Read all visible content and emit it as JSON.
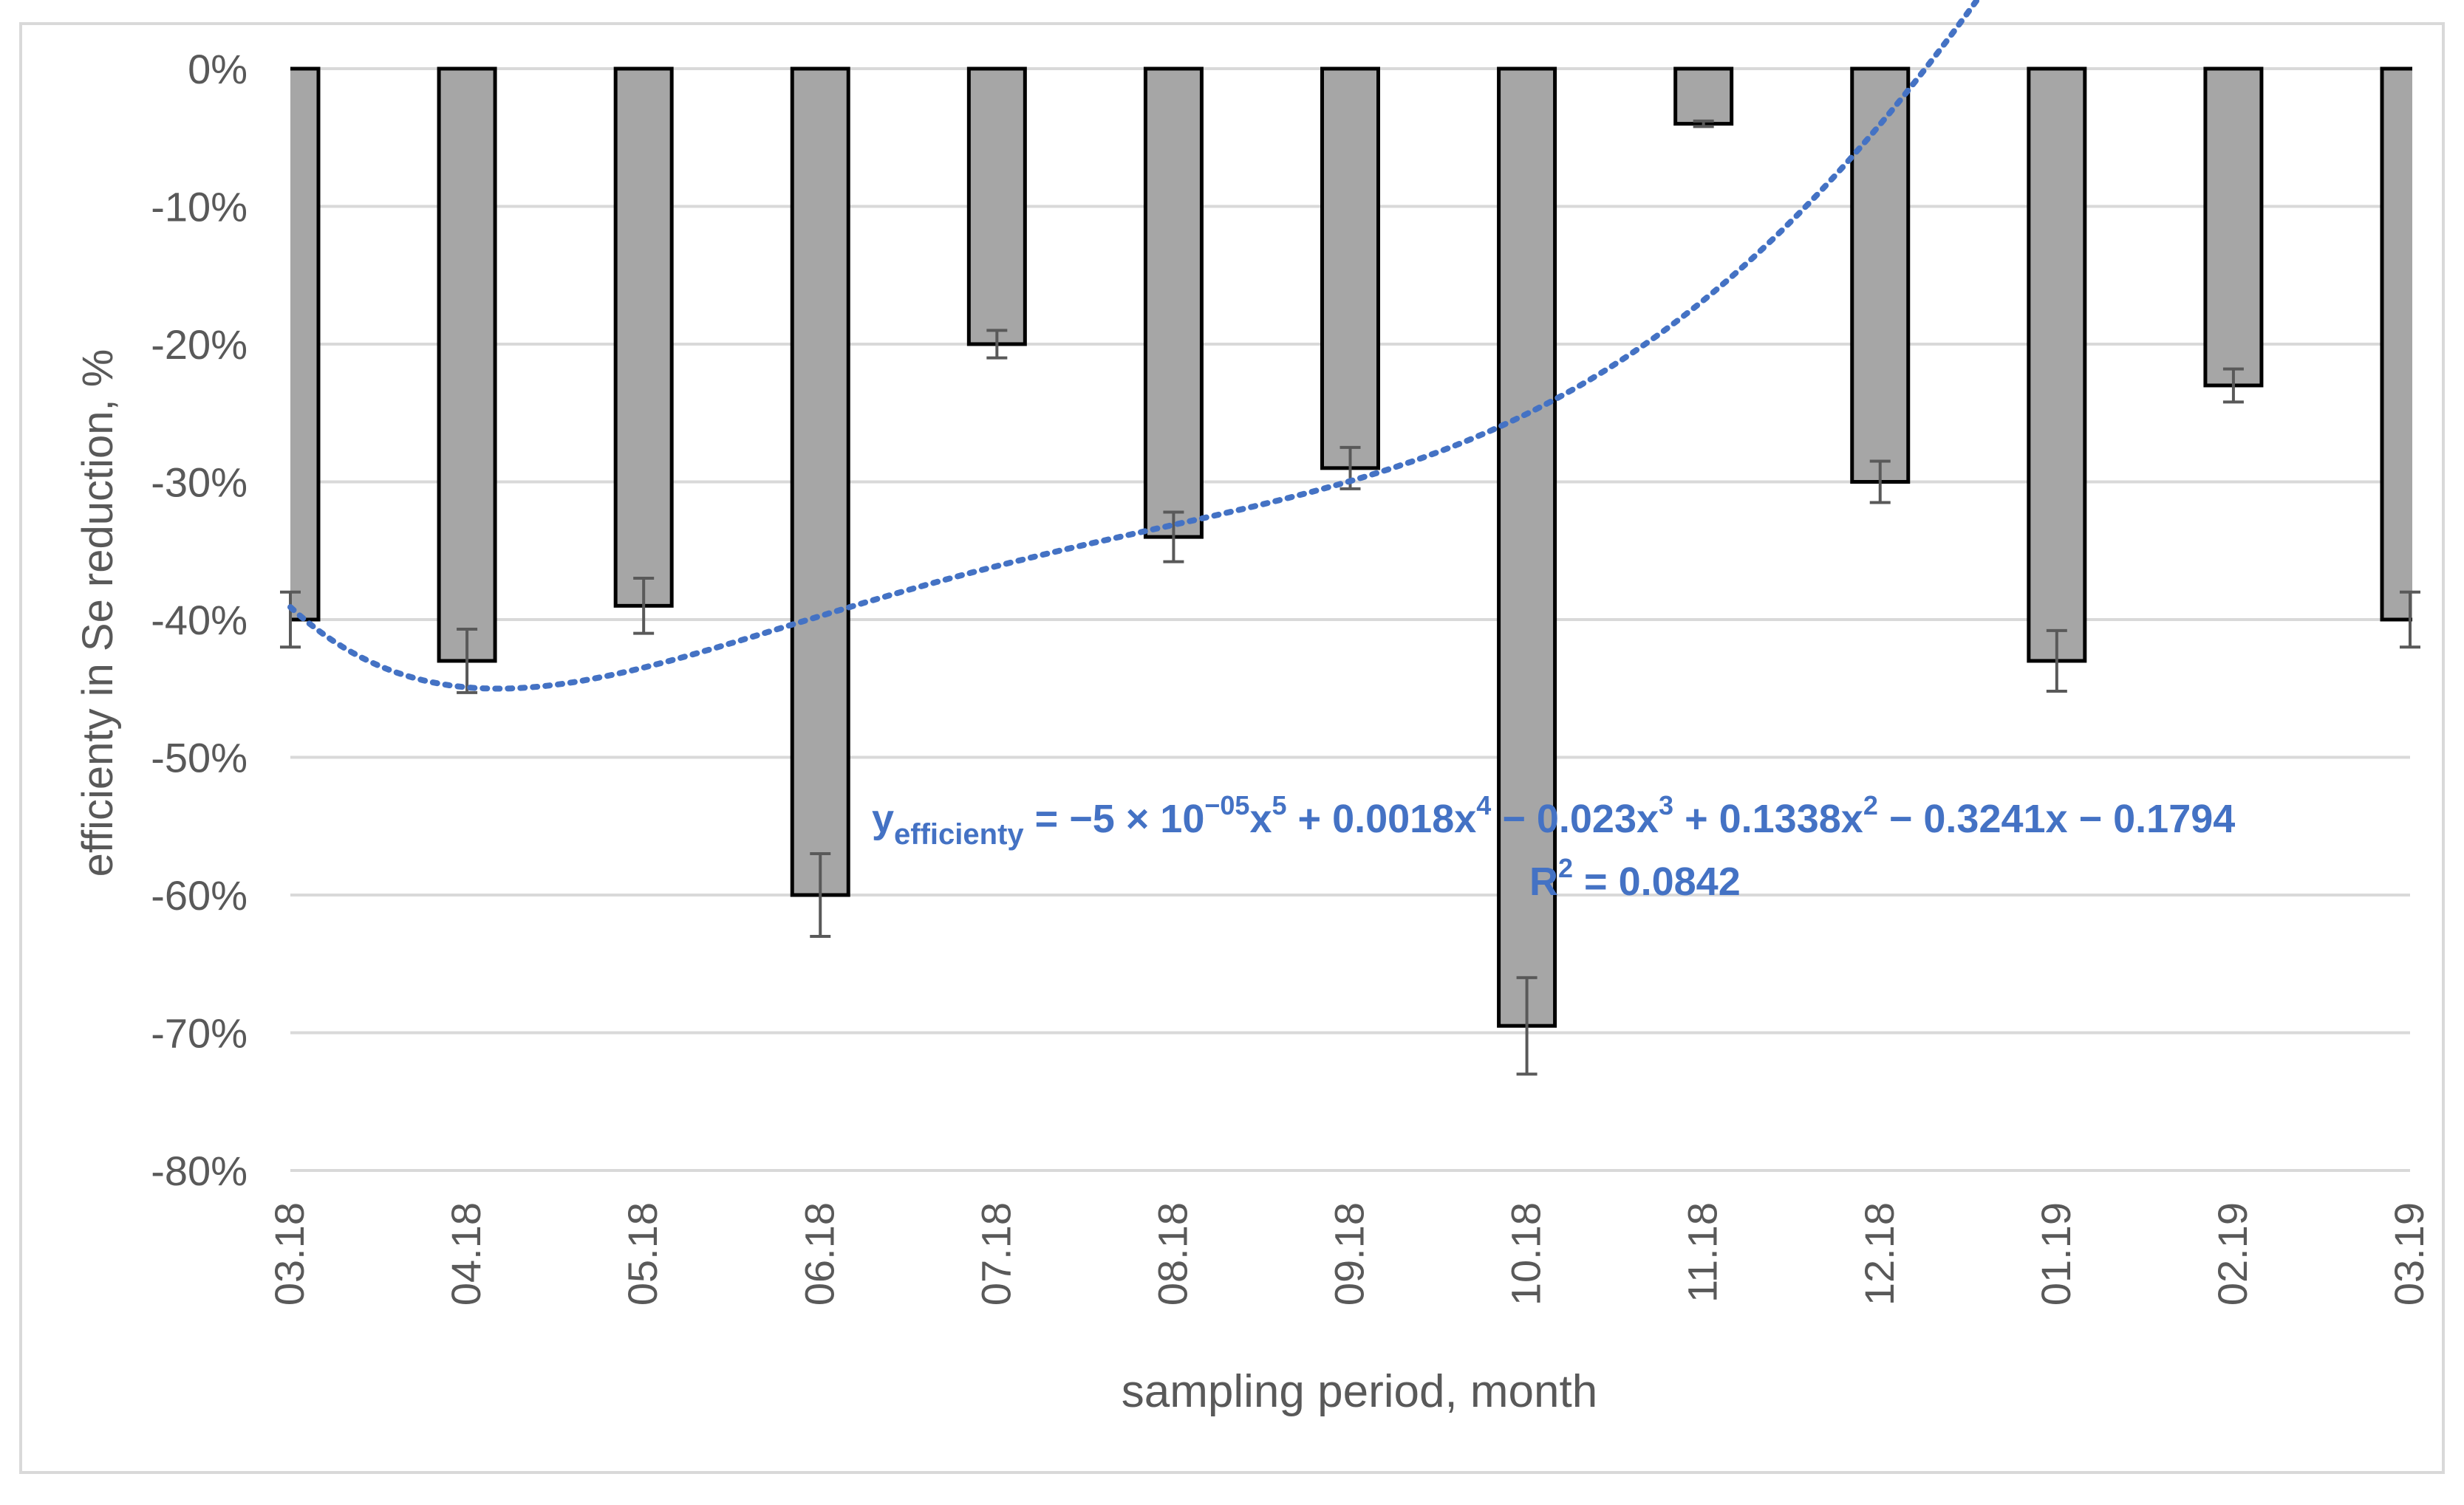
{
  "chart_data": {
    "type": "bar",
    "title": "",
    "xlabel": "sampling period, month",
    "ylabel": "efficienty in Se reduction, %",
    "categories": [
      "03.18",
      "04.18",
      "05.18",
      "06.18",
      "07.18",
      "08.18",
      "09.18",
      "10.18",
      "11.18",
      "12.18",
      "01.19",
      "02.19",
      "03.19"
    ],
    "values": [
      -40,
      -43,
      -39,
      -60,
      -20,
      -34,
      -29,
      -69.5,
      -4,
      -30,
      -43,
      -23,
      -40
    ],
    "error": [
      2,
      2.3,
      2,
      3,
      1,
      1.8,
      1.5,
      3.5,
      0.2,
      1.5,
      2.2,
      1.2,
      2
    ],
    "ylim": [
      -80,
      0
    ],
    "yticks": [
      0,
      -10,
      -20,
      -30,
      -40,
      -50,
      -60,
      -70,
      -80
    ],
    "ytick_labels": [
      "0%",
      "-10%",
      "-20%",
      "-30%",
      "-40%",
      "-50%",
      "-60%",
      "-70%",
      "-80%"
    ],
    "grid": true,
    "colors": {
      "bar_fill": "#a6a6a6",
      "bar_edge": "#000000",
      "error_bar": "#595959",
      "trendline": "#4472c4",
      "equation_text": "#4472c4",
      "gridline": "#d9d9d9",
      "axis_text": "#595959",
      "frame": "#d9d9d9"
    },
    "trendline": {
      "type": "polynomial",
      "order": 5,
      "style": "dotted",
      "coefficients": [
        -5e-05,
        0.0018,
        -0.023,
        0.1338,
        -0.3241,
        -0.1794
      ],
      "equation": {
        "y_symbol": "y",
        "y_subscript": "efficienty",
        "rhs_part1": " = −5 × 10",
        "exp1": "−05",
        "rhs_part2": "x",
        "exp2": "5",
        "rhs_part3": " + 0.0018x",
        "exp3": "4",
        "rhs_part4": " − 0.023x",
        "exp4": "3",
        "rhs_part5": " + 0.1338x",
        "exp5": "2",
        "rhs_part6": " − 0.3241x − 0.1794"
      },
      "r_squared": {
        "prefix": "R",
        "exp": "2",
        "value_text": " = 0.0842"
      }
    }
  }
}
